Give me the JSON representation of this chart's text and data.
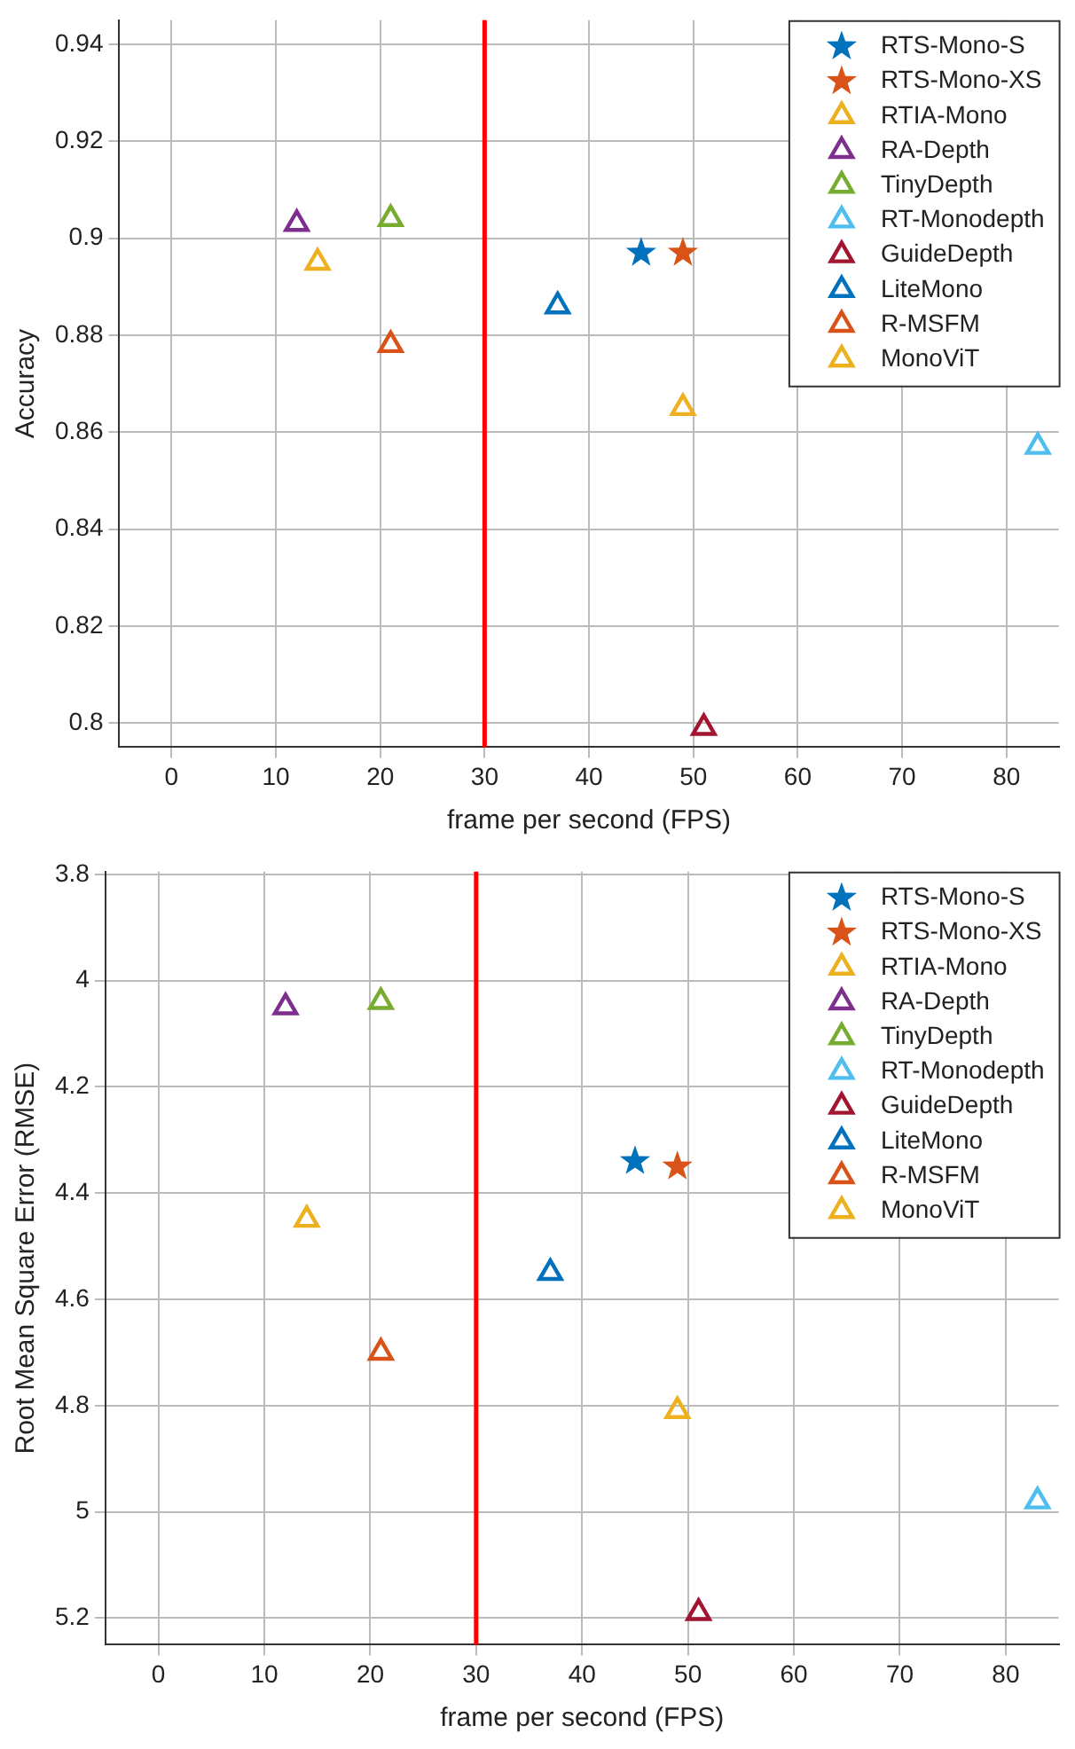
{
  "chart_data": [
    {
      "type": "scatter",
      "xlabel": "frame per second (FPS)",
      "ylabel": "Accuracy",
      "xlim": [
        -5,
        85
      ],
      "xticks": [
        0,
        10,
        20,
        30,
        40,
        50,
        60,
        70,
        80
      ],
      "ylim": [
        0.795,
        0.945
      ],
      "yticks": [
        0.8,
        0.82,
        0.84,
        0.86,
        0.88,
        0.9,
        0.92,
        0.94
      ],
      "grid": true,
      "legend": "top right",
      "ref_lines": [
        {
          "axis": "x",
          "value": 30,
          "color": "#ff0000"
        }
      ],
      "series": [
        {
          "name": "RTS-Mono-S",
          "color": "#0072bd",
          "marker": "star",
          "x": [
            45
          ],
          "values": [
            0.897
          ]
        },
        {
          "name": "RTS-Mono-XS",
          "color": "#d95319",
          "marker": "star",
          "x": [
            49
          ],
          "values": [
            0.897
          ]
        },
        {
          "name": "RTIA-Mono",
          "color": "#edb120",
          "marker": "triangle",
          "x": [
            14
          ],
          "values": [
            0.895
          ]
        },
        {
          "name": "RA-Depth",
          "color": "#7e2f8e",
          "marker": "triangle",
          "x": [
            12
          ],
          "values": [
            0.903
          ]
        },
        {
          "name": "TinyDepth",
          "color": "#77ac30",
          "marker": "triangle",
          "x": [
            21
          ],
          "values": [
            0.904
          ]
        },
        {
          "name": "RT-Monodepth",
          "color": "#4dbeee",
          "marker": "triangle",
          "x": [
            83
          ],
          "values": [
            0.857
          ]
        },
        {
          "name": "GuideDepth",
          "color": "#a2142f",
          "marker": "triangle",
          "x": [
            51
          ],
          "values": [
            0.799
          ]
        },
        {
          "name": "LiteMono",
          "color": "#0072bd",
          "marker": "triangle",
          "x": [
            37
          ],
          "values": [
            0.886
          ]
        },
        {
          "name": "R-MSFM",
          "color": "#d95319",
          "marker": "triangle",
          "x": [
            21
          ],
          "values": [
            0.878
          ]
        },
        {
          "name": "MonoViT",
          "color": "#edb120",
          "marker": "triangle",
          "x": [
            49
          ],
          "values": [
            0.865
          ]
        }
      ]
    },
    {
      "type": "scatter",
      "xlabel": "frame per second (FPS)",
      "ylabel": "Root Mean Square Error (RMSE)",
      "xlim": [
        -5,
        85
      ],
      "xticks": [
        0,
        10,
        20,
        30,
        40,
        50,
        60,
        70,
        80
      ],
      "ylim": [
        5.25,
        3.795
      ],
      "yticks": [
        3.8,
        4,
        4.2,
        4.4,
        4.6,
        4.8,
        5,
        5.2
      ],
      "grid": true,
      "legend": "top right",
      "ref_lines": [
        {
          "axis": "x",
          "value": 30,
          "color": "#ff0000"
        }
      ],
      "series": [
        {
          "name": "RTS-Mono-S",
          "color": "#0072bd",
          "marker": "star",
          "x": [
            45
          ],
          "values": [
            4.34
          ]
        },
        {
          "name": "RTS-Mono-XS",
          "color": "#d95319",
          "marker": "star",
          "x": [
            49
          ],
          "values": [
            4.35
          ]
        },
        {
          "name": "RTIA-Mono",
          "color": "#edb120",
          "marker": "triangle",
          "x": [
            14
          ],
          "values": [
            4.45
          ]
        },
        {
          "name": "RA-Depth",
          "color": "#7e2f8e",
          "marker": "triangle",
          "x": [
            12
          ],
          "values": [
            4.05
          ]
        },
        {
          "name": "TinyDepth",
          "color": "#77ac30",
          "marker": "triangle",
          "x": [
            21
          ],
          "values": [
            4.04
          ]
        },
        {
          "name": "RT-Monodepth",
          "color": "#4dbeee",
          "marker": "triangle",
          "x": [
            83
          ],
          "values": [
            4.98
          ]
        },
        {
          "name": "GuideDepth",
          "color": "#a2142f",
          "marker": "triangle",
          "x": [
            51
          ],
          "values": [
            5.19
          ]
        },
        {
          "name": "LiteMono",
          "color": "#0072bd",
          "marker": "triangle",
          "x": [
            37
          ],
          "values": [
            4.55
          ]
        },
        {
          "name": "R-MSFM",
          "color": "#d95319",
          "marker": "triangle",
          "x": [
            21
          ],
          "values": [
            4.7
          ]
        },
        {
          "name": "MonoViT",
          "color": "#edb120",
          "marker": "triangle",
          "x": [
            49
          ],
          "values": [
            4.81
          ]
        }
      ]
    }
  ]
}
